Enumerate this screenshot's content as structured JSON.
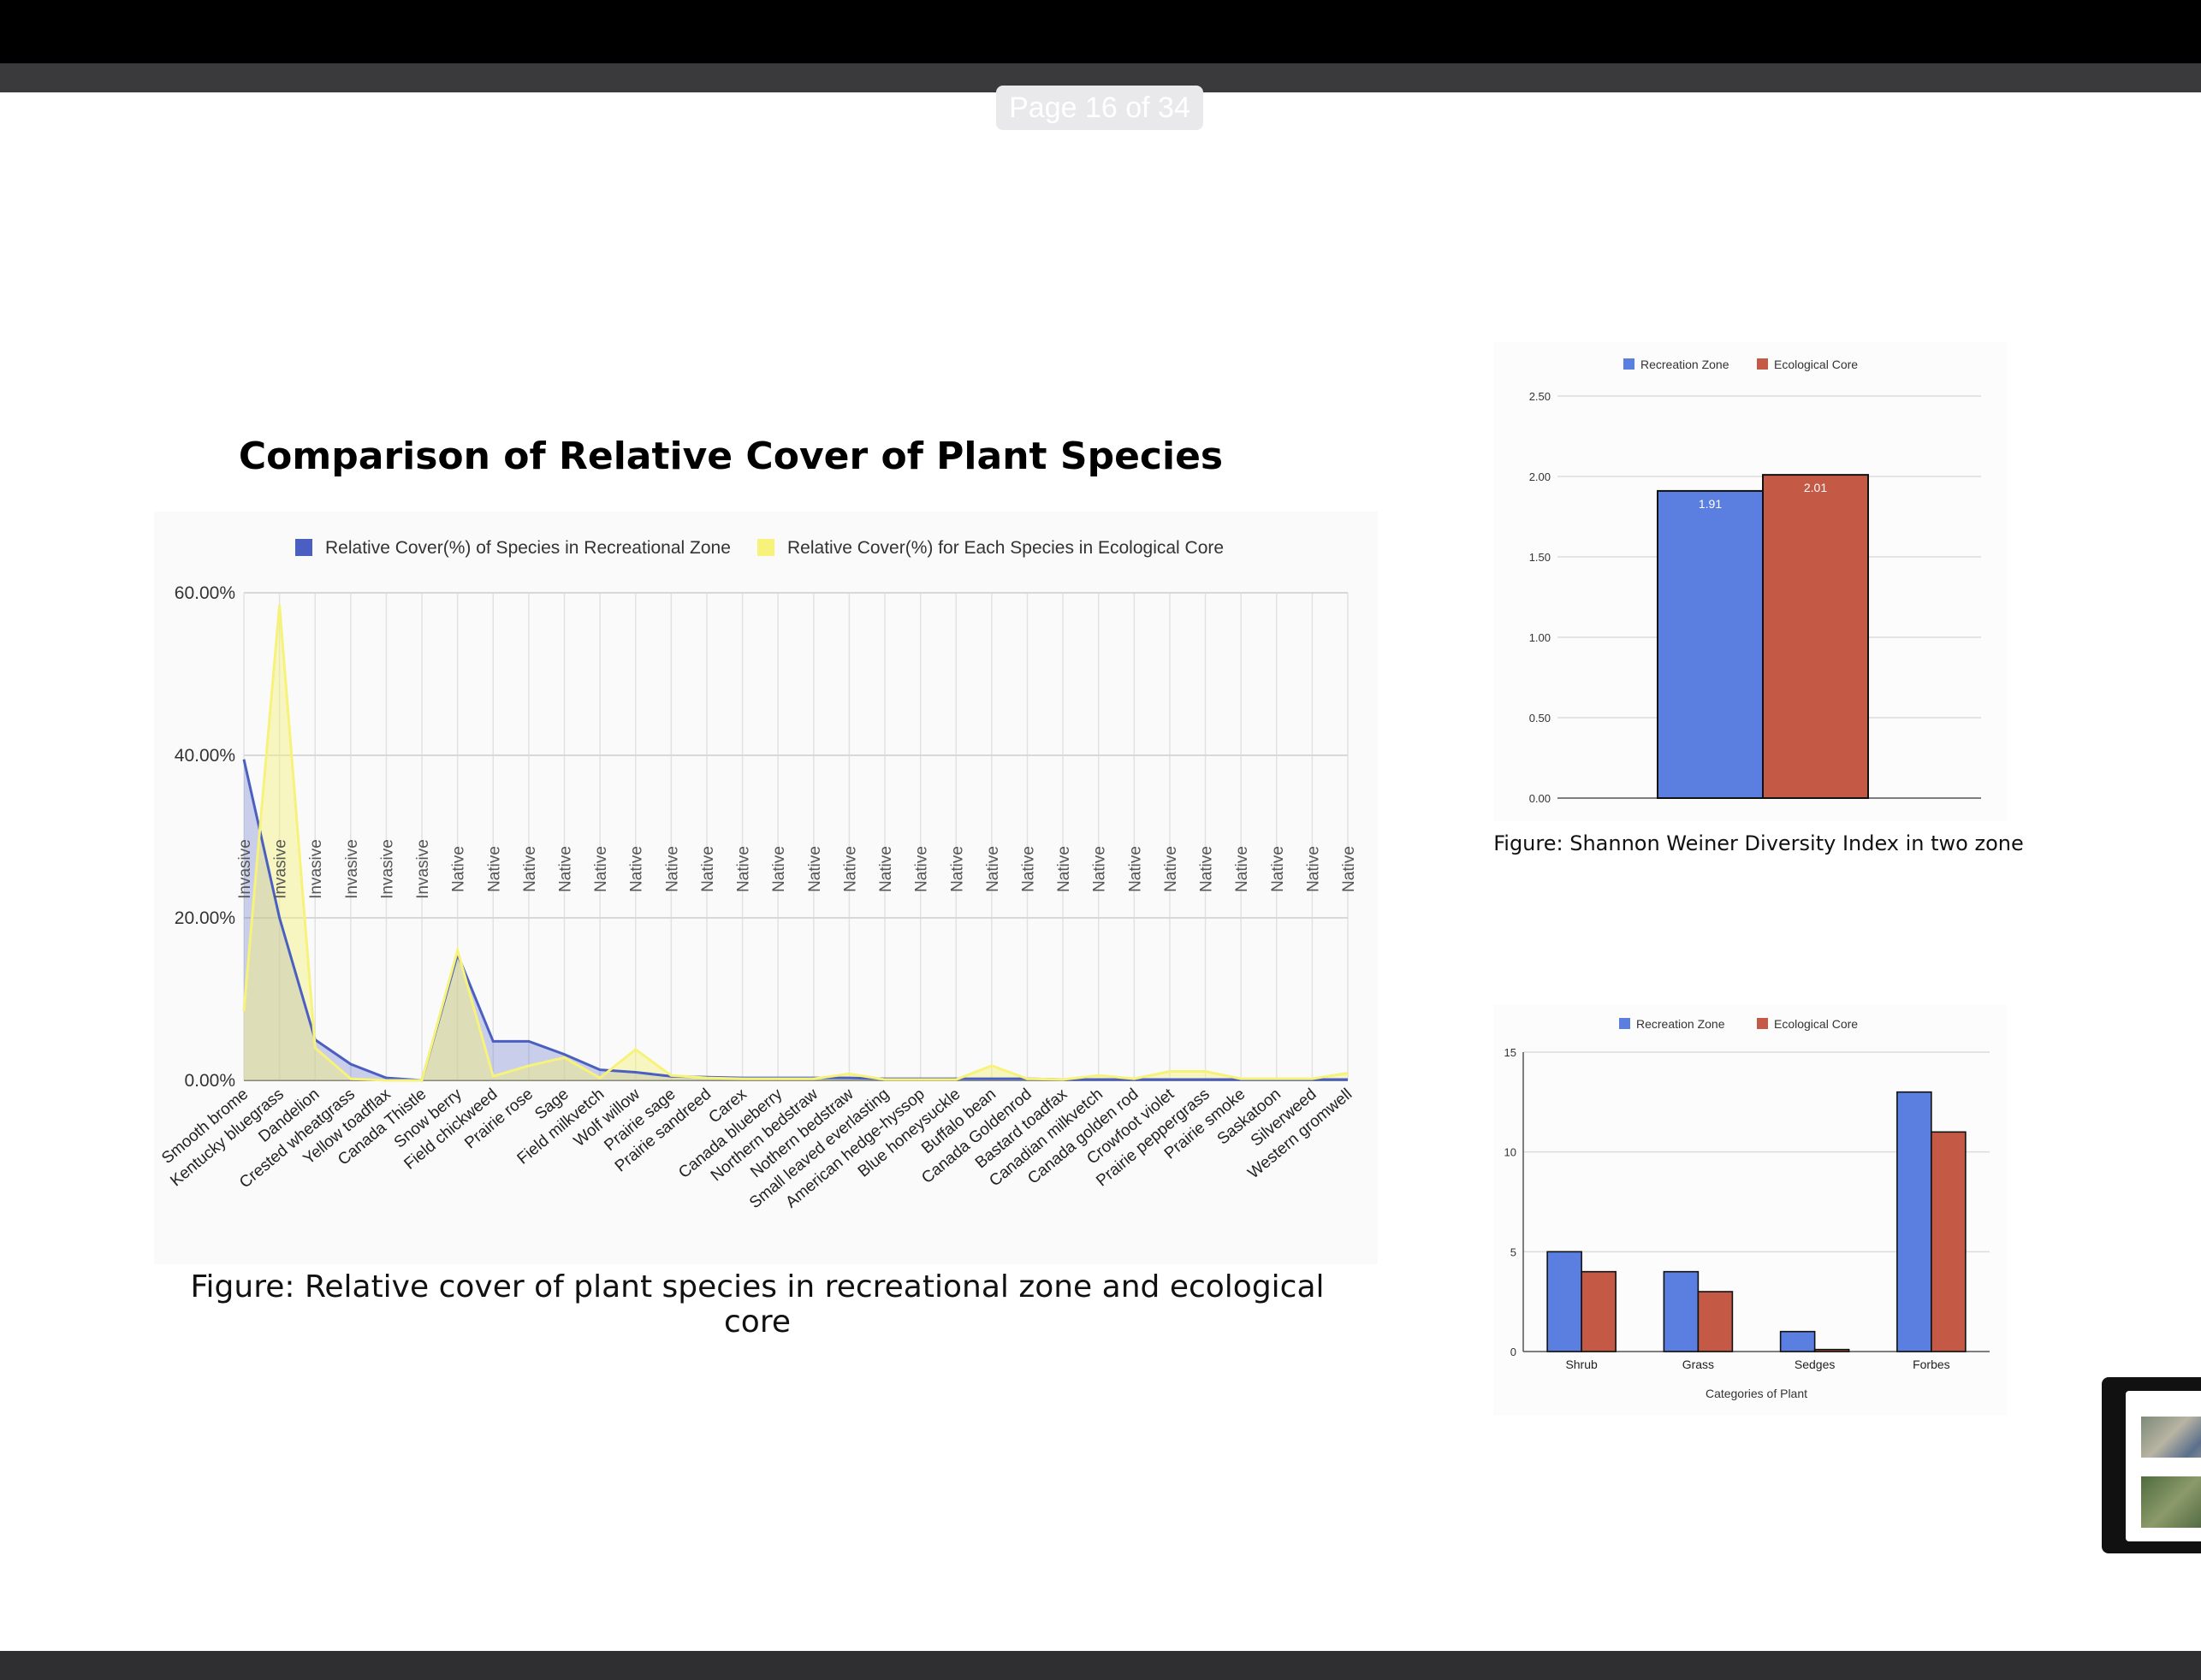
{
  "viewer": {
    "page_indicator": "Page 16 of 34"
  },
  "main_chart": {
    "title": "Comparison of Relative Cover of Plant Species",
    "caption": "Figure: Relative cover of plant species in recreational zone and ecological core"
  },
  "diversity_chart": {
    "caption": "Figure: Shannon Weiner Diversity Index in two zone"
  },
  "colors": {
    "rec_line": "#4a5fc1",
    "eco_line": "#f6f27a",
    "rec_bar": "#5b7fe0",
    "eco_bar": "#c45a45"
  },
  "chart_data": [
    {
      "type": "area",
      "title": "Comparison of Relative Cover of Plant Species",
      "legend_position": "top",
      "ylim": [
        0,
        60
      ],
      "yticks": [
        "0.00%",
        "20.00%",
        "40.00%",
        "60.00%"
      ],
      "categories": [
        "Smooth brome",
        "Kentucky bluegrass",
        "Dandelion",
        "Crested wheatgrass",
        "Yellow toadflax",
        "Canada Thistle",
        "Snow berry",
        "Field chickweed",
        "Prairie rose",
        "Sage",
        "Field milkvetch",
        "Wolf willow",
        "Prairie sage",
        "Prairie sandreed",
        "Carex",
        "Canada blueberry",
        "Northern bedstraw",
        "Nothern bedstraw",
        "Small leaved everlasting",
        "American hedge-hyssop",
        "Blue honeysuckle",
        "Buffalo bean",
        "Canada Goldenrod",
        "Bastard toadfax",
        "Canadian milkvetch",
        "Canada golden rod",
        "Crowfoot violet",
        "Prairie peppergrass",
        "Prairie smoke",
        "Saskatoon",
        "Silverweed",
        "Western gromwell"
      ],
      "status_labels": [
        "Invasive",
        "Invasive",
        "Invasive",
        "Invasive",
        "Invasive",
        "Invasive",
        "Native",
        "Native",
        "Native",
        "Native",
        "Native",
        "Native",
        "Native",
        "Native",
        "Native",
        "Native",
        "Native",
        "Native",
        "Native",
        "Native",
        "Native",
        "Native",
        "Native",
        "Native",
        "Native",
        "Native",
        "Native",
        "Native",
        "Native",
        "Native",
        "Native",
        "Native"
      ],
      "series": [
        {
          "name": "Relative Cover(%) of Species in Recreational Zone",
          "values": [
            39.5,
            20,
            5,
            2,
            0.3,
            0,
            15.5,
            4.8,
            4.8,
            3.2,
            1.3,
            1,
            0.5,
            0.4,
            0.3,
            0.3,
            0.3,
            0.3,
            0.2,
            0.2,
            0.2,
            0.2,
            0.2,
            0.1,
            0.1,
            0.1,
            0.1,
            0.1,
            0.1,
            0.1,
            0.1,
            0.1
          ]
        },
        {
          "name": "Relative Cover(%) for Each Species in Ecological Core",
          "values": [
            8.5,
            58.5,
            4,
            0.2,
            0,
            0,
            16,
            0.5,
            1.8,
            2.8,
            0.3,
            3.8,
            0.6,
            0.3,
            0.2,
            0.2,
            0.2,
            0.8,
            0.1,
            0.1,
            0.1,
            1.8,
            0.2,
            0.1,
            0.6,
            0.2,
            1.1,
            1.1,
            0.2,
            0.2,
            0.2,
            0.9
          ]
        }
      ]
    },
    {
      "type": "bar",
      "legend_position": "top",
      "categories": [
        ""
      ],
      "ylim": [
        0,
        2.5
      ],
      "yticks": [
        "0.00",
        "0.50",
        "1.00",
        "1.50",
        "2.00",
        "2.50"
      ],
      "series": [
        {
          "name": "Recreation Zone",
          "values": [
            1.91
          ],
          "labels": [
            "1.91"
          ]
        },
        {
          "name": "Ecological Core",
          "values": [
            2.01
          ],
          "labels": [
            "2.01"
          ]
        }
      ]
    },
    {
      "type": "bar",
      "legend_position": "top",
      "xlabel": "Categories of Plant",
      "categories": [
        "Shrub",
        "Grass",
        "Sedges",
        "Forbes"
      ],
      "ylim": [
        0,
        15
      ],
      "yticks": [
        "0",
        "5",
        "10",
        "15"
      ],
      "series": [
        {
          "name": "Recreation Zone",
          "values": [
            5,
            4,
            1,
            13
          ]
        },
        {
          "name": "Ecological Core",
          "values": [
            4,
            3,
            0.1,
            11
          ]
        }
      ]
    }
  ]
}
